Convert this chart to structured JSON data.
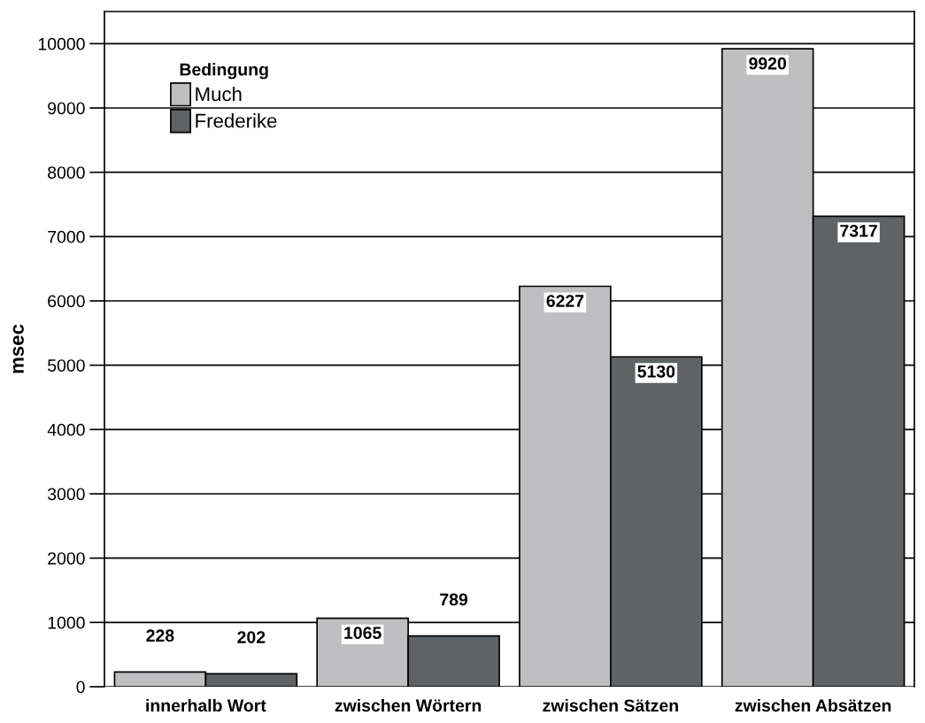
{
  "chart_data": {
    "type": "bar",
    "ylabel": "msec",
    "legend_title": "Bedingung",
    "categories": [
      "innerhalb Wort",
      "zwischen Wörtern",
      "zwischen Sätzen",
      "zwischen Absätzen"
    ],
    "series": [
      {
        "name": "Much",
        "color": "#bfbfc1",
        "values": [
          228,
          1065,
          6227,
          9920
        ]
      },
      {
        "name": "Frederike",
        "color": "#5f6366",
        "values": [
          202,
          789,
          5130,
          7317
        ]
      }
    ],
    "ylim": [
      0,
      10500
    ],
    "yticks": [
      0,
      1000,
      2000,
      3000,
      4000,
      5000,
      6000,
      7000,
      8000,
      9000,
      10000
    ],
    "grid": "y",
    "legend": "top left",
    "data_labels": true
  }
}
